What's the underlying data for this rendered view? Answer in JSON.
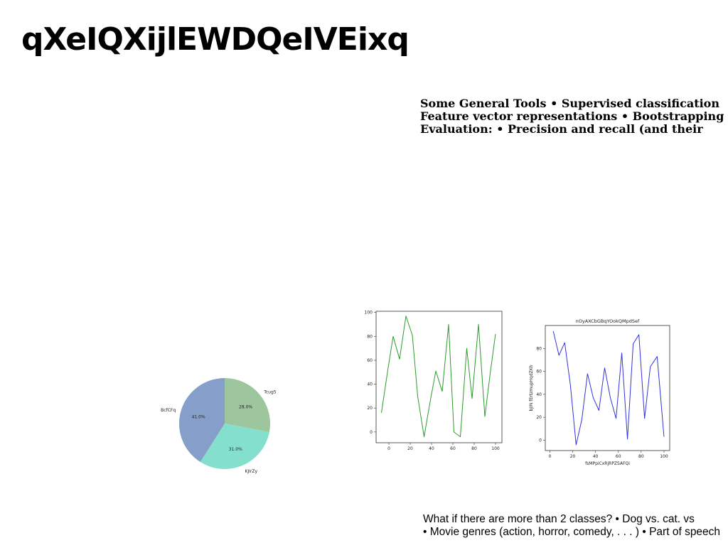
{
  "slide": {
    "title": "qXeIQXijlEWDQeIVEixq",
    "tools_lines": [
      "Some General Tools • Supervised classification",
      "Feature vector representations • Bootstrapping",
      "Evaluation: • Precision and recall (and their"
    ],
    "classes_lines": [
      "What if there are more than 2 classes? • Dog vs. cat. vs",
      "• Movie genres (action, horror, comedy, . . . ) • Part of speech"
    ]
  },
  "chart_data": [
    {
      "type": "pie",
      "title": "",
      "labels": [
        "Tcug5",
        "KJIrZy",
        "BcfCFq"
      ],
      "values": [
        28.0,
        31.0,
        41.0
      ],
      "value_labels": [
        "28.0%",
        "31.0%",
        "41.0%"
      ],
      "colors": [
        "#9dc59e",
        "#84e0cd",
        "#859fca"
      ],
      "start": "top, clockwise"
    },
    {
      "type": "line",
      "title": "",
      "xlabel": "",
      "ylabel": "",
      "x": [
        -7,
        -1,
        4,
        10,
        16,
        22,
        27,
        33,
        39,
        44,
        50,
        56,
        61,
        67,
        73,
        78,
        84,
        90,
        95,
        100
      ],
      "y": [
        16,
        52,
        80,
        61,
        97,
        81,
        30,
        -4,
        27,
        51,
        34,
        90,
        0,
        -4,
        70,
        28,
        90,
        13,
        49,
        82
      ],
      "xticks": [
        "0",
        "20",
        "40",
        "60",
        "80",
        "100"
      ],
      "yticks": [
        "0",
        "20",
        "40",
        "60",
        "80",
        "100"
      ],
      "xlim": [
        -12,
        106
      ],
      "ylim": [
        -9,
        101
      ],
      "color": "#2e9a2e",
      "grid": false
    },
    {
      "type": "line",
      "title": "nOyAXCbGBqYOokQMpdSef",
      "xlabel": "fsMPpiCxRjRPZSAFQi",
      "ylabel": "bJIN fErtzmupHqdZKh",
      "x": [
        3,
        8,
        13,
        18,
        23,
        28,
        33,
        38,
        43,
        48,
        53,
        58,
        63,
        68,
        73,
        78,
        83,
        88,
        94,
        100
      ],
      "y": [
        95,
        74,
        85,
        48,
        -4,
        18,
        58,
        37,
        26,
        63,
        37,
        19,
        76,
        1,
        84,
        92,
        19,
        64,
        73,
        3
      ],
      "xticks": [
        "0",
        "20",
        "40",
        "60",
        "80",
        "100"
      ],
      "yticks": [
        "0",
        "20",
        "40",
        "60",
        "80"
      ],
      "xlim": [
        -4,
        105
      ],
      "ylim": [
        -9,
        100
      ],
      "color": "#3333dd",
      "grid": false
    }
  ]
}
